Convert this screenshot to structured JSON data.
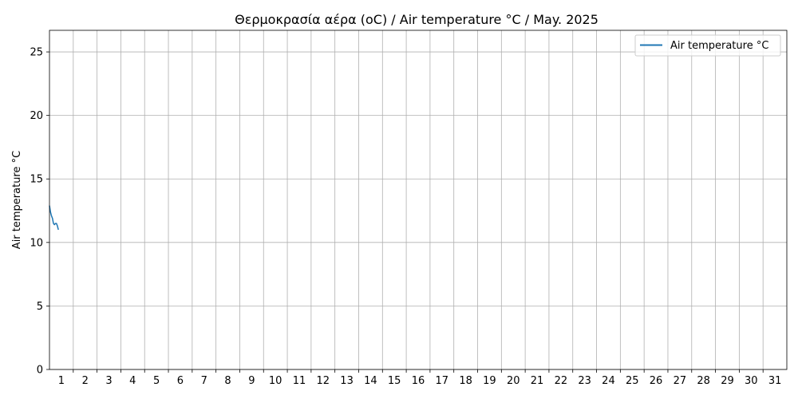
{
  "chart_data": {
    "type": "line",
    "title": "Θερμοκρασία αέρα (oC) / Air temperature °C / May. 2025",
    "xlabel": "",
    "ylabel": "Air temperature °C",
    "x_tick_labels": [
      "1",
      "2",
      "3",
      "4",
      "5",
      "6",
      "7",
      "8",
      "9",
      "10",
      "11",
      "12",
      "13",
      "14",
      "15",
      "16",
      "17",
      "18",
      "19",
      "20",
      "21",
      "22",
      "23",
      "24",
      "25",
      "26",
      "27",
      "28",
      "29",
      "30",
      "31"
    ],
    "xlim": [
      "2025-05-01",
      "2025-06-01"
    ],
    "ylim": [
      0,
      26.7
    ],
    "y_ticks": [
      0,
      5,
      10,
      15,
      20,
      25
    ],
    "grid": true,
    "legend": "top-right",
    "series": [
      {
        "name": "Air temperature °C",
        "color": "#1f77b4",
        "x": [
          "2025-05-01 00:00",
          "2025-05-01 01:00",
          "2025-05-01 02:00",
          "2025-05-01 03:00",
          "2025-05-01 04:00",
          "2025-05-01 05:00",
          "2025-05-01 06:00",
          "2025-05-01 07:00",
          "2025-05-01 08:00",
          "2025-05-01 09:00"
        ],
        "values": [
          12.9,
          12.4,
          12.1,
          11.9,
          11.5,
          11.4,
          11.5,
          11.5,
          11.3,
          11.0
        ]
      }
    ]
  }
}
